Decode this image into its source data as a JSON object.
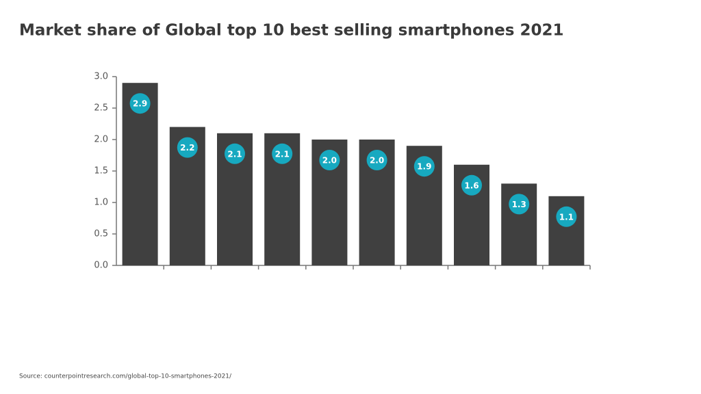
{
  "chart_data": {
    "type": "bar",
    "title": "Market share of Global top 10 best selling smartphones 2021",
    "source": "Source: counterpointresearch.com/global-top-10-smartphones-2021/",
    "categories": [
      null,
      null,
      null,
      null,
      null,
      null,
      null,
      null,
      null,
      null
    ],
    "values": [
      2.9,
      2.2,
      2.1,
      2.1,
      2,
      2,
      1.9,
      1.6,
      1.3,
      1.1
    ],
    "value_labels": [
      "2.9",
      "2.2",
      "2.1",
      "2.1",
      "2.0",
      "2.0",
      "1.9",
      "1.6",
      "1.3",
      "1.1"
    ],
    "color": "#404040",
    "label_color": "#17a9c0",
    "ylim": [
      0,
      3
    ],
    "yticks": [
      {
        "value": 0,
        "label": "0.0"
      },
      0.5,
      {
        "value": 1,
        "label": "1.0"
      },
      1.5,
      {
        "value": 2,
        "label": "2.0"
      },
      2.5,
      {
        "value": 3,
        "label": "3.0"
      }
    ],
    "grid": false
  }
}
